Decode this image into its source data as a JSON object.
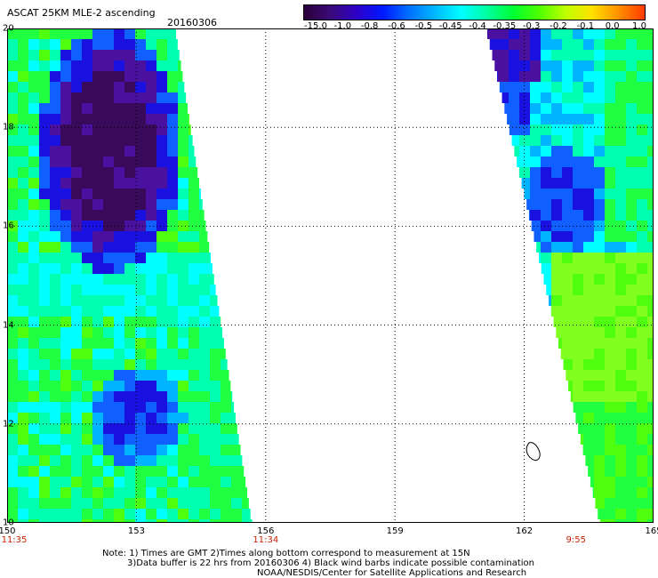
{
  "header": {
    "title": "ASCAT 25KM MLE-2 ascending",
    "date": "20160306"
  },
  "colorbar": {
    "labels": [
      "-15.0",
      "-1.0",
      "-0.8",
      "-0.6",
      "-0.5",
      "-0.45",
      "-0.4",
      "-0.35",
      "-0.3",
      "-0.2",
      "-0.1",
      "0.0",
      "1.0"
    ],
    "colors": [
      "#2a0038",
      "#3a0a78",
      "#2e00c8",
      "#0018ff",
      "#0070ff",
      "#00b8ff",
      "#00ffff",
      "#00ffa0",
      "#00ff30",
      "#50ff00",
      "#c0ff00",
      "#ffe000",
      "#ff9000",
      "#ff3a00"
    ]
  },
  "map": {
    "lon_ticks": [
      "150",
      "153",
      "156",
      "159",
      "162",
      "165"
    ],
    "lat_ticks": [
      "20",
      "18",
      "16",
      "14",
      "12",
      "10"
    ],
    "lon_range": [
      150,
      165
    ],
    "lat_range": [
      10,
      20
    ],
    "pass_times": [
      {
        "label": "11:35",
        "lon": 150
      },
      {
        "label": "11:34",
        "lon": 156
      },
      {
        "label": "9:55",
        "lon": 163.2
      }
    ]
  },
  "notes": {
    "line1": "Note: 1) Times are GMT 2)Times along bottom correspond to measurement at 15N",
    "line2": "3)Data buffer is 22 hrs from 20160306 4) Black wind barbs indicate possible contamination",
    "line3": "NOAA/NESDIS/Center for Satellite Applications and Research"
  }
}
